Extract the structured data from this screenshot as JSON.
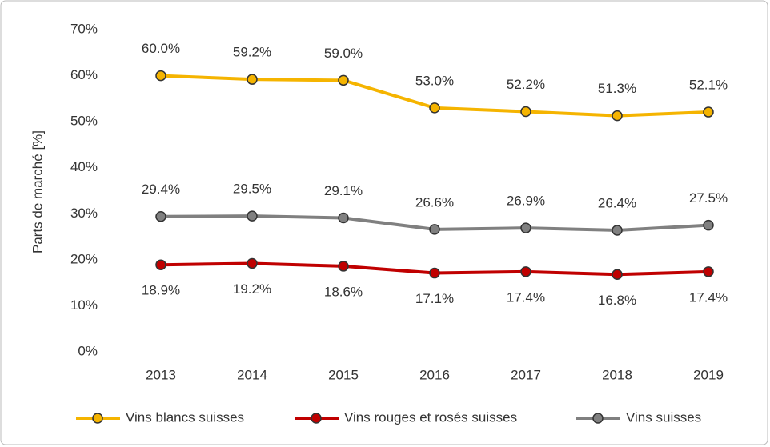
{
  "chart_data": {
    "type": "line",
    "y_label": "Parts de marché [%]",
    "categories": [
      "2013",
      "2014",
      "2015",
      "2016",
      "2017",
      "2018",
      "2019"
    ],
    "series": [
      {
        "name": "Vins blancs suisses",
        "color": "#f5b400",
        "values": [
          60.0,
          59.2,
          59.0,
          53.0,
          52.2,
          51.3,
          52.1
        ],
        "value_labels": [
          "60.0%",
          "59.2%",
          "59.0%",
          "53.0%",
          "52.2%",
          "51.3%",
          "52.1%"
        ]
      },
      {
        "name": "Vins rouges et rosés suisses",
        "color": "#c00000",
        "values": [
          18.9,
          19.2,
          18.6,
          17.1,
          17.4,
          16.8,
          17.4
        ],
        "value_labels": [
          "18.9%",
          "19.2%",
          "18.6%",
          "17.1%",
          "17.4%",
          "16.8%",
          "17.4%"
        ]
      },
      {
        "name": "Vins suisses",
        "color": "#808080",
        "values": [
          29.4,
          29.5,
          29.1,
          26.6,
          26.9,
          26.4,
          27.5
        ],
        "value_labels": [
          "29.4%",
          "29.5%",
          "29.1%",
          "26.6%",
          "26.9%",
          "26.4%",
          "27.5%"
        ]
      }
    ],
    "ylim": [
      0,
      70
    ],
    "yticks": [
      {
        "value": 0,
        "label": "0%"
      },
      {
        "value": 10,
        "label": "10%"
      },
      {
        "value": 20,
        "label": "20%"
      },
      {
        "value": 30,
        "label": "30%"
      },
      {
        "value": 40,
        "label": "40%"
      },
      {
        "value": 50,
        "label": "50%"
      },
      {
        "value": 60,
        "label": "60%"
      },
      {
        "value": 70,
        "label": "70%"
      }
    ],
    "grid": false,
    "legend": "bottom"
  }
}
